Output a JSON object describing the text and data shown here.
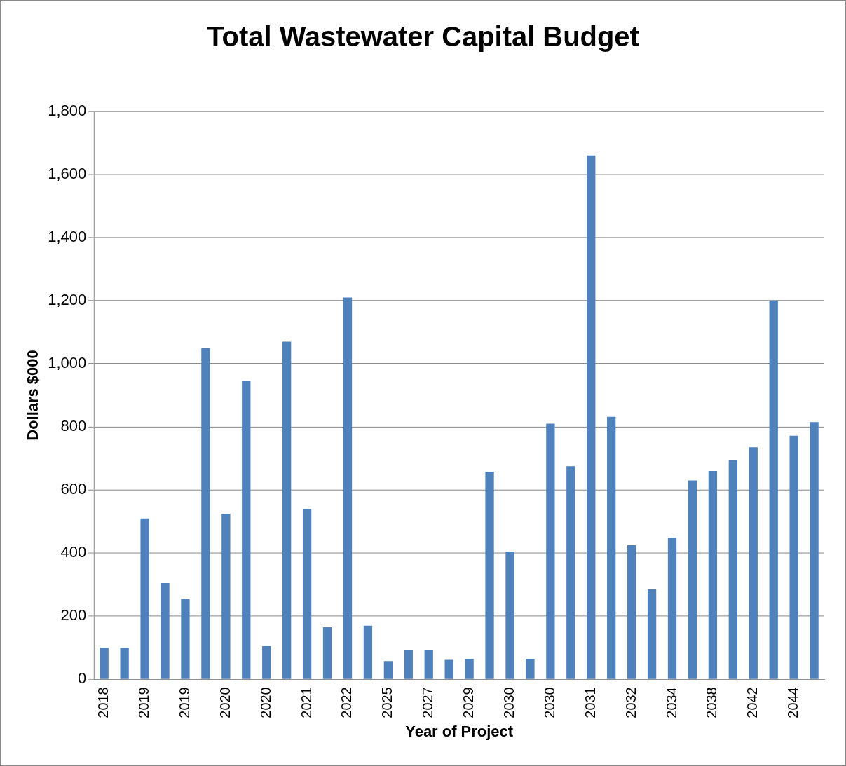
{
  "chart_data": {
    "type": "bar",
    "title": "Total Wastewater Capital Budget",
    "xlabel": "Year of Project",
    "ylabel": "Dollars $000",
    "categories": [
      "2018",
      null,
      "2019",
      null,
      "2019",
      null,
      "2020",
      null,
      "2020",
      null,
      "2021",
      null,
      "2022",
      null,
      "2025",
      null,
      "2027",
      null,
      "2029",
      null,
      "2030",
      null,
      "2030",
      null,
      "2031",
      null,
      "2032",
      null,
      "2034",
      null,
      "2038",
      null,
      "2042",
      null,
      "2044",
      null
    ],
    "values": [
      100,
      100,
      510,
      305,
      255,
      1050,
      525,
      945,
      105,
      1070,
      540,
      165,
      1210,
      170,
      58,
      92,
      92,
      62,
      65,
      658,
      405,
      65,
      810,
      675,
      1660,
      832,
      425,
      285,
      448,
      630,
      660,
      695,
      735,
      1200,
      772,
      815
    ],
    "color": "#4f81bd",
    "ylim": [
      0,
      1800
    ],
    "yticks": [
      0,
      200,
      400,
      600,
      800,
      {
        "value": 1000,
        "label": "1,000"
      },
      {
        "value": 1200,
        "label": "1,200"
      },
      {
        "value": 1400,
        "label": "1,400"
      },
      {
        "value": 1600,
        "label": "1,600"
      },
      {
        "value": 1800,
        "label": "1,800"
      }
    ],
    "grid": "y"
  }
}
